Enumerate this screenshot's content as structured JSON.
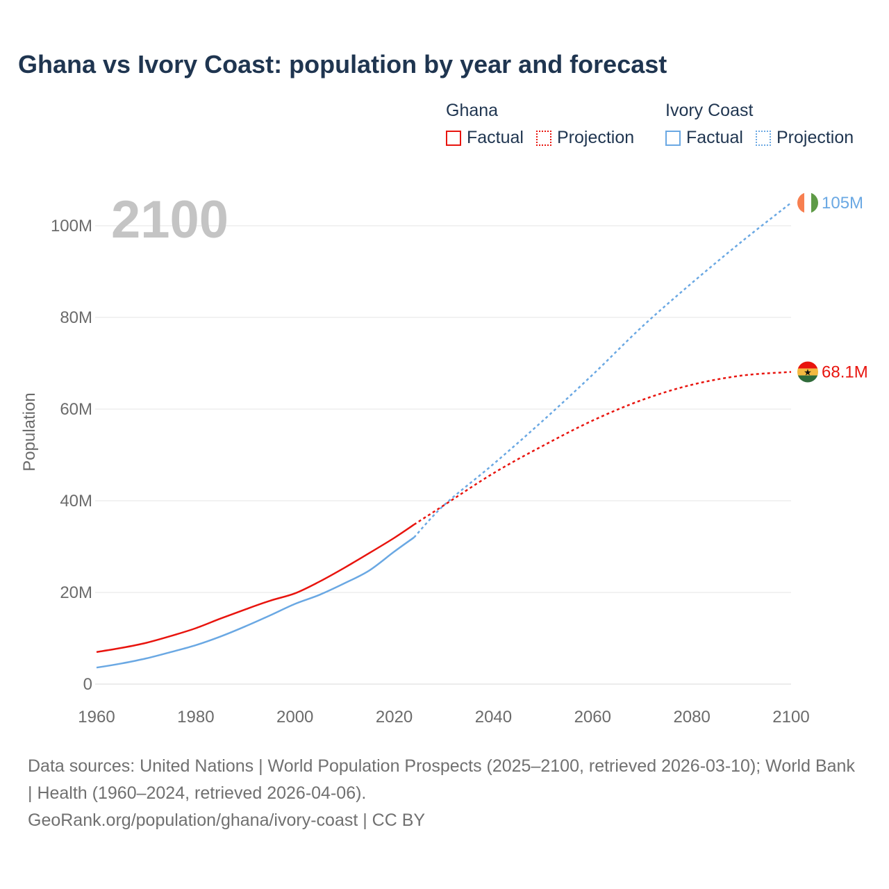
{
  "title": "Ghana vs Ivory Coast: population by year and forecast",
  "legend": {
    "ghana": {
      "name": "Ghana",
      "factual": "Factual",
      "projection": "Projection"
    },
    "ivory": {
      "name": "Ivory Coast",
      "factual": "Factual",
      "projection": "Projection"
    }
  },
  "year_watermark": "2100",
  "source": {
    "line1": "Data sources: United Nations | World Population Prospects (2025–2100, retrieved 2026-03-10); World Bank | Health (1960–2024, retrieved 2026-04-06).",
    "line2": "GeoRank.org/population/ghana/ivory-coast | CC BY"
  },
  "colors": {
    "ghana": "#e8140e",
    "ivory": "#6aa8e3",
    "grid": "#e6e6e6",
    "axis_text": "#6b6b6b",
    "watermark": "#c4c4c4"
  },
  "chart_data": {
    "type": "line",
    "title": "Ghana vs Ivory Coast: population by year and forecast",
    "xlabel": "",
    "ylabel": "Population",
    "xlim": [
      1960,
      2100
    ],
    "ylim": [
      0,
      110
    ],
    "y_unit": "millions",
    "x_ticks": [
      1960,
      1980,
      2000,
      2020,
      2040,
      2060,
      2080,
      2100
    ],
    "y_ticks": [
      0,
      20,
      40,
      60,
      80,
      100
    ],
    "y_tick_labels": [
      "0",
      "20M",
      "40M",
      "60M",
      "80M",
      "100M"
    ],
    "grid": true,
    "legend_position": "top-right",
    "series": [
      {
        "name": "Ghana",
        "color": "#e8140e",
        "end_label": "68.1M",
        "factual": {
          "x": [
            1960,
            1965,
            1970,
            1975,
            1980,
            1985,
            1990,
            1995,
            2000,
            2005,
            2010,
            2015,
            2020,
            2024
          ],
          "y": [
            7.0,
            7.9,
            9.0,
            10.5,
            12.2,
            14.3,
            16.3,
            18.2,
            19.8,
            22.4,
            25.4,
            28.6,
            31.9,
            34.8
          ]
        },
        "projection": {
          "x": [
            2024,
            2030,
            2040,
            2050,
            2060,
            2070,
            2080,
            2090,
            2100
          ],
          "y": [
            34.8,
            39.0,
            46.0,
            52.0,
            57.5,
            62.0,
            65.3,
            67.3,
            68.1
          ]
        }
      },
      {
        "name": "Ivory Coast",
        "color": "#6aa8e3",
        "end_label": "105M",
        "factual": {
          "x": [
            1960,
            1965,
            1970,
            1975,
            1980,
            1985,
            1990,
            1995,
            2000,
            2005,
            2010,
            2015,
            2020,
            2024
          ],
          "y": [
            3.6,
            4.5,
            5.6,
            7.0,
            8.5,
            10.4,
            12.6,
            15.0,
            17.5,
            19.5,
            22.0,
            24.8,
            28.9,
            32.0
          ]
        },
        "projection": {
          "x": [
            2024,
            2030,
            2040,
            2050,
            2060,
            2070,
            2080,
            2090,
            2100
          ],
          "y": [
            32.0,
            39.0,
            48.0,
            57.5,
            67.5,
            78.0,
            87.5,
            96.5,
            105.0
          ]
        }
      }
    ]
  }
}
